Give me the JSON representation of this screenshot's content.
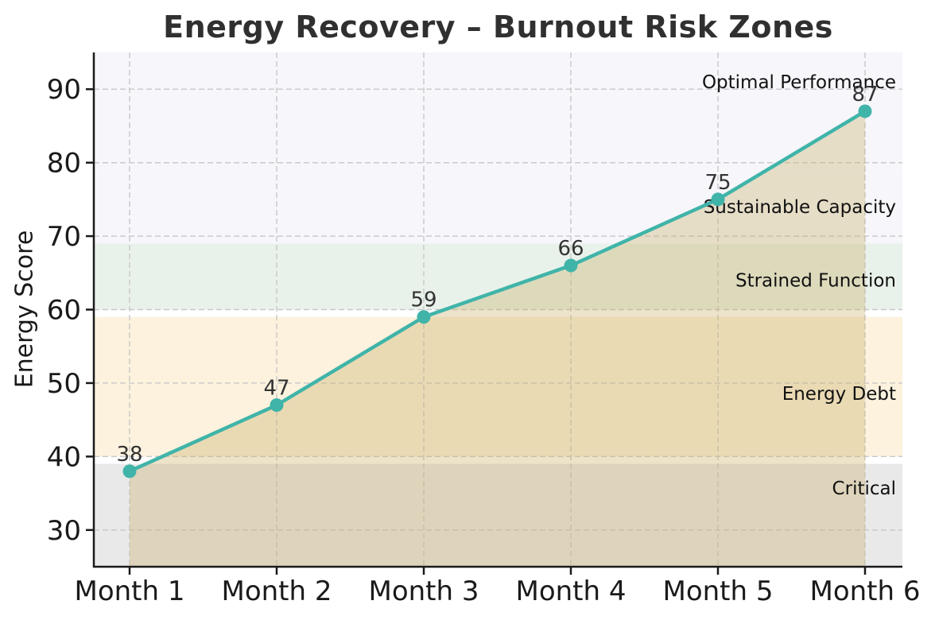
{
  "chart_data": {
    "type": "line",
    "title": "Energy Recovery – Burnout Risk Zones",
    "xlabel": "",
    "ylabel": "Energy Score",
    "categories": [
      "Month 1",
      "Month 2",
      "Month 3",
      "Month 4",
      "Month 5",
      "Month 6"
    ],
    "x": [
      1,
      2,
      3,
      4,
      5,
      6
    ],
    "series": [
      {
        "name": "Energy Score",
        "values": [
          38,
          47,
          59,
          66,
          75,
          87
        ]
      }
    ],
    "point_labels": [
      "38",
      "47",
      "59",
      "66",
      "75",
      "87"
    ],
    "ylim": [
      25,
      95
    ],
    "yticks": [
      30,
      40,
      50,
      60,
      70,
      80,
      90
    ],
    "grid": "dashed",
    "legend": "none",
    "colors": {
      "line": "#40b4a9",
      "marker": "#40b4a9",
      "fill": "rgba(201,174,104,0.35)",
      "grid": "#c8c8c8",
      "axis": "#1a1a1a",
      "tick_label": "#1a1a1a",
      "point_label": "#333333",
      "zone_label": "#111111",
      "title": "#303030"
    },
    "zones": [
      {
        "label": "Critical",
        "from": 25,
        "to": 39,
        "color": "#e9e9e9",
        "label_value": 35.7
      },
      {
        "label": "Energy Debt",
        "from": 40,
        "to": 59,
        "color": "#fcf2de",
        "label_value": 48.6
      },
      {
        "label": "Strained Function",
        "from": 60,
        "to": 69,
        "color": "#e9f2ea",
        "label_value": 64.0
      },
      {
        "label": "Sustainable Capacity",
        "from": 69,
        "to": 79,
        "color": "#f6f6fb",
        "label_value": 74.0
      },
      {
        "label": "Optimal Performance",
        "from": 79,
        "to": 95,
        "color": "#f6f6fb",
        "label_value": 91.0
      }
    ]
  }
}
